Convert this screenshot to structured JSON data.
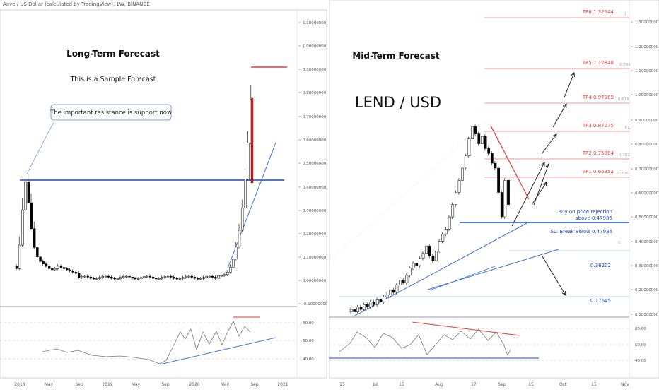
{
  "header": {
    "title": "Aave / US Dollar (calculated by TradingView), 1W, BINANCE"
  },
  "colors": {
    "resistance_blue": "#1848c0",
    "trendline_blue": "#3d74d6",
    "target_red": "#e53935",
    "candle_up": "#ffffff",
    "candle_down": "#000000",
    "grid": "#dfe3ea",
    "panel_border": "#9aa0a8"
  },
  "left_panel": {
    "title": "Long-Term Forecast",
    "subtitle": "This is a Sample Forecast",
    "callout": "The important resistance is support now",
    "price_ticks": [
      "1.10000000",
      "1.00000000",
      "0.90000000",
      "0.80000000",
      "0.70000000",
      "0.60000000",
      "0.50000000",
      "0.40000000",
      "0.30000000",
      "0.20000000",
      "0.10000000",
      "0.00000000",
      "-0.10000000"
    ],
    "time_ticks": [
      "2018",
      "May",
      "Sep",
      "2019",
      "May",
      "Sep",
      "2020",
      "May",
      "Sep",
      "2021"
    ],
    "osc_ticks": [
      "80.00",
      "60.00",
      "40.00"
    ]
  },
  "right_panel": {
    "title": "Mid-Term Forecast",
    "pair": "LEND / USD",
    "targets": [
      {
        "label": "TP6 1.32144",
        "fib": "1"
      },
      {
        "label": "TP5 1.12848",
        "fib": "0.786"
      },
      {
        "label": "TP4 0.97969",
        "fib": "0.618"
      },
      {
        "label": "TP3 0.87275",
        "fib": "0.5"
      },
      {
        "label": "TP2 0.75884",
        "fib": "0.382"
      },
      {
        "label": "TP1 0.66352",
        "fib": "0.236"
      }
    ],
    "buy_note_line1": "Buy on price rejection",
    "buy_note_line2": "above 0.47986",
    "stop_note": "SL: Break Below 0.47986",
    "zero_label": "0",
    "level_low1": "0.36202",
    "level_low2": "0.17645",
    "price_ticks": [
      "1.30000000",
      "1.20000000",
      "1.10000000",
      "1.00000000",
      "0.90000000",
      "0.80000000",
      "0.70000000",
      "0.60000000",
      "0.50000000",
      "0.40000000",
      "0.30000000",
      "0.20000000",
      "0.10000000"
    ],
    "time_ticks": [
      "15",
      "Jul",
      "15",
      "Aug",
      "17",
      "Sep",
      "15",
      "Oct",
      "15",
      "Nov"
    ],
    "osc_ticks": [
      "80.00",
      "60.00",
      "40.00"
    ]
  }
}
